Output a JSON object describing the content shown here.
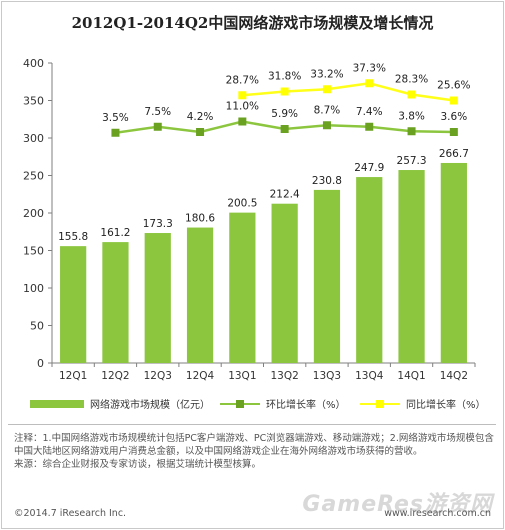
{
  "title": "2012Q1-2014Q2中国网络游戏市场规模及增长情况",
  "chart_data": {
    "type": "bar",
    "categories": [
      "12Q1",
      "12Q2",
      "12Q3",
      "12Q4",
      "13Q1",
      "13Q2",
      "13Q3",
      "13Q4",
      "14Q1",
      "14Q2"
    ],
    "ylim": [
      0,
      400
    ],
    "yticks": [
      0,
      50,
      100,
      150,
      200,
      250,
      300,
      350,
      400
    ],
    "series": [
      {
        "name": "网络游戏市场规模（亿元）",
        "kind": "bar",
        "color": "#8cc63f",
        "values": [
          155.8,
          161.2,
          173.3,
          180.6,
          200.5,
          212.4,
          230.8,
          247.9,
          257.3,
          266.7
        ],
        "labels": [
          "155.8",
          "161.2",
          "173.3",
          "180.6",
          "200.5",
          "212.4",
          "230.8",
          "247.9",
          "257.3",
          "266.7"
        ]
      },
      {
        "name": "环比增长率（%）",
        "kind": "line",
        "color": "#8cc63f",
        "marker_color": "#6aa121",
        "values": [
          null,
          3.5,
          7.5,
          4.2,
          11.0,
          5.9,
          8.7,
          7.4,
          3.8,
          3.6
        ],
        "plot_y": [
          null,
          307,
          315,
          308,
          322,
          312,
          317,
          315,
          309,
          308
        ],
        "labels": [
          null,
          "3.5%",
          "7.5%",
          "4.2%",
          "11.0%",
          "5.9%",
          "8.7%",
          "7.4%",
          "3.8%",
          "3.6%"
        ]
      },
      {
        "name": "同比增长率（%）",
        "kind": "line",
        "color": "#ffff1a",
        "marker_color": "#ffff00",
        "values": [
          null,
          null,
          null,
          null,
          28.7,
          31.8,
          33.2,
          37.3,
          28.3,
          25.6
        ],
        "plot_y": [
          null,
          null,
          null,
          null,
          357,
          362,
          365,
          373,
          358,
          350
        ],
        "labels": [
          null,
          null,
          null,
          null,
          "28.7%",
          "31.8%",
          "33.2%",
          "37.3%",
          "28.3%",
          "25.6%"
        ]
      }
    ]
  },
  "legend": {
    "bar_label": "网络游戏市场规模（亿元）",
    "qoq_label": "环比增长率（%）",
    "yoy_label": "同比增长率（%）"
  },
  "notes": {
    "line1": "注释：1.中国网络游戏市场规模统计包括PC客户端游戏、PC浏览器端游戏、移动端游戏；2.网络游戏市场规模包含中国大陆地区网络游戏用户消费总金额，以及中国网络游戏企业在海外网络游戏市场获得的营收。",
    "line2": "来源：综合企业财报及专家访谈，根据艾瑞统计模型核算。"
  },
  "footer": {
    "copyright": "©2014.7 iResearch Inc.",
    "site": "www.iresearch.com.cn"
  },
  "watermark": "GameRes游资网"
}
